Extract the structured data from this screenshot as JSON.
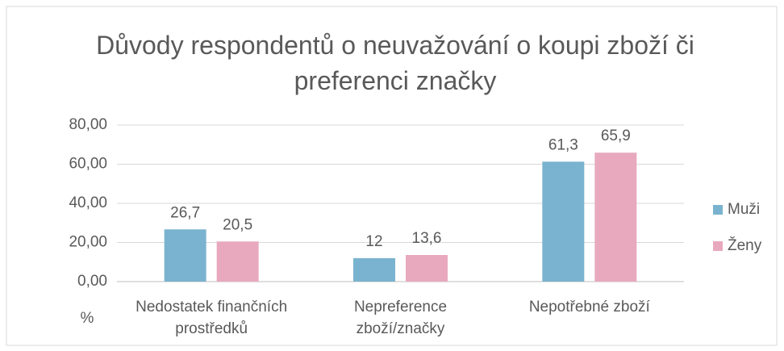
{
  "chart_data": {
    "type": "bar",
    "title": "Důvody respondentů o neuvažování o koupi zboží či preferenci značky",
    "y_label": "%",
    "categories": [
      "Nedostatek finančních prostředků",
      "Nepreference zboží/značky",
      "Nepotřebné zboží"
    ],
    "series": [
      {
        "name": "Muži",
        "color": "#7ab3cf",
        "values": [
          26.7,
          12,
          61.3
        ],
        "value_labels": [
          "26,7",
          "12",
          "61,3"
        ]
      },
      {
        "name": "Ženy",
        "color": "#e8a9bf",
        "values": [
          20.5,
          13.6,
          65.9
        ],
        "value_labels": [
          "20,5",
          "13,6",
          "65,9"
        ]
      }
    ],
    "ylim": [
      0,
      80
    ],
    "yticks": [
      {
        "value": 0,
        "label": "0,00"
      },
      {
        "value": 20,
        "label": "20,00"
      },
      {
        "value": 40,
        "label": "40,00"
      },
      {
        "value": 60,
        "label": "60,00"
      },
      {
        "value": 80,
        "label": "80,00"
      }
    ],
    "grid": true,
    "legend": "right"
  }
}
